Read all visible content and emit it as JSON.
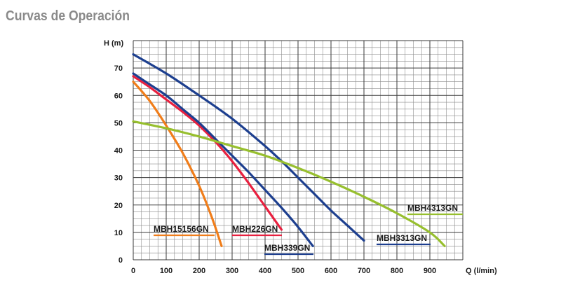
{
  "page": {
    "title": "Curvas de Operación"
  },
  "chart_data": {
    "type": "line",
    "title": "Curvas de Operación",
    "xlabel": "Q (l/min)",
    "ylabel": "H (m)",
    "xlim": [
      0,
      1000
    ],
    "ylim": [
      0,
      80
    ],
    "x_ticks": [
      0,
      100,
      200,
      300,
      400,
      500,
      600,
      700,
      800,
      900
    ],
    "y_ticks": [
      0,
      10,
      20,
      30,
      40,
      50,
      60,
      70
    ],
    "grid": true,
    "series": [
      {
        "name": "MBH15156GN",
        "color": "#f07d1a",
        "points": [
          [
            0,
            65
          ],
          [
            50,
            58
          ],
          [
            100,
            49
          ],
          [
            150,
            39
          ],
          [
            200,
            27
          ],
          [
            240,
            15
          ],
          [
            268,
            5
          ]
        ]
      },
      {
        "name": "MBH226GN",
        "color": "#e8203f",
        "points": [
          [
            0,
            67
          ],
          [
            50,
            63
          ],
          [
            100,
            58.5
          ],
          [
            150,
            54
          ],
          [
            200,
            49
          ],
          [
            250,
            43
          ],
          [
            300,
            36
          ],
          [
            350,
            28
          ],
          [
            400,
            19.5
          ],
          [
            450,
            11
          ]
        ]
      },
      {
        "name": "MBH339GN",
        "color": "#1d3f8f",
        "points": [
          [
            0,
            68
          ],
          [
            50,
            64
          ],
          [
            100,
            60
          ],
          [
            150,
            55
          ],
          [
            200,
            50
          ],
          [
            250,
            44
          ],
          [
            300,
            38
          ],
          [
            350,
            32
          ],
          [
            400,
            25.5
          ],
          [
            450,
            19
          ],
          [
            500,
            12
          ],
          [
            545,
            5
          ]
        ]
      },
      {
        "name": "MBH3313GN",
        "color": "#1d3f8f",
        "points": [
          [
            0,
            75
          ],
          [
            100,
            68
          ],
          [
            200,
            60
          ],
          [
            300,
            51.5
          ],
          [
            400,
            41.5
          ],
          [
            450,
            36
          ],
          [
            500,
            30
          ],
          [
            550,
            24
          ],
          [
            600,
            18
          ],
          [
            650,
            12.5
          ],
          [
            700,
            7
          ]
        ]
      },
      {
        "name": "MBH4313GN",
        "color": "#97bf2e",
        "points": [
          [
            0,
            50.5
          ],
          [
            100,
            48
          ],
          [
            200,
            45
          ],
          [
            300,
            41.5
          ],
          [
            400,
            38
          ],
          [
            500,
            33.5
          ],
          [
            600,
            28.5
          ],
          [
            700,
            23
          ],
          [
            800,
            17
          ],
          [
            900,
            10
          ],
          [
            945,
            5
          ]
        ]
      }
    ]
  }
}
